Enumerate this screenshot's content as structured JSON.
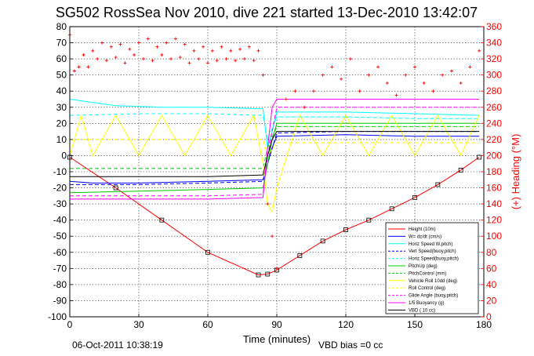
{
  "chart_data": {
    "type": "line",
    "title": "SG502 RossSea Nov 2010, dive 221 started 13-Dec-2010 13:42:07",
    "xlabel": "Time (minutes)",
    "ylabel_right": "(+) Heading (°M)",
    "xlim": [
      0,
      180
    ],
    "ylim": [
      -100,
      80
    ],
    "ylim_right": [
      0,
      360
    ],
    "x_ticks": [
      0,
      30,
      60,
      90,
      120,
      150,
      180
    ],
    "y_ticks": [
      -100,
      -90,
      -80,
      -70,
      -60,
      -50,
      -40,
      -30,
      -20,
      -10,
      0,
      10,
      20,
      30,
      40,
      50,
      60,
      70,
      80
    ],
    "y_ticks_right": [
      0,
      20,
      40,
      60,
      80,
      100,
      120,
      140,
      160,
      180,
      200,
      220,
      240,
      260,
      280,
      300,
      320,
      340,
      360
    ],
    "grid": true,
    "legend_position": "bottom-right",
    "footer_left": "06-Oct-2011 10:38:19",
    "footer_right": "VBD bias =0 cc",
    "colors": {
      "height": "#ff0000",
      "vert_speed": "#0000ff",
      "horiz_speed": "#00ffff",
      "pitch": "#00cc00",
      "roll": "#ffff00",
      "buoyancy": "#ff00ff",
      "vbd": "#000000",
      "heading": "#ff0000"
    },
    "series": [
      {
        "name": "Height (10m)",
        "color": "#ff0000",
        "style": "solid-marker",
        "x": [
          0,
          20,
          40,
          60,
          82,
          86,
          90,
          100,
          110,
          120,
          130,
          140,
          150,
          160,
          170,
          178
        ],
        "y": [
          -1,
          -20,
          -40,
          -60,
          -74,
          -73.5,
          -71,
          -62,
          -53,
          -46,
          -40,
          -33,
          -26,
          -18,
          -9,
          -1
        ]
      },
      {
        "name": "W= dz/dt (cm/s)",
        "color": "#0000ff",
        "style": "solid",
        "x": [
          0,
          10,
          30,
          60,
          84,
          86,
          88,
          90,
          120,
          150,
          178
        ],
        "y": [
          -16,
          -17,
          -17,
          -16,
          -15,
          -5,
          5,
          12,
          13,
          12,
          12
        ]
      },
      {
        "name": "Horiz Speed W,pitch)",
        "color": "#00ffff",
        "style": "solid",
        "x": [
          0,
          5,
          20,
          40,
          60,
          84,
          86,
          88,
          90,
          120,
          150,
          178
        ],
        "y": [
          35,
          34,
          31,
          30,
          30,
          29,
          5,
          15,
          27,
          27,
          26,
          25
        ]
      },
      {
        "name": "Vert Speed(buoy,pitch)",
        "color": "#0000ff",
        "style": "dash",
        "x": [
          0,
          30,
          60,
          84,
          86,
          90,
          120,
          150,
          178
        ],
        "y": [
          -18,
          -18,
          -17,
          -16,
          -5,
          14,
          15,
          15,
          15
        ]
      },
      {
        "name": "Horiz Speed(buoy,pitch)",
        "color": "#00ffff",
        "style": "dash",
        "x": [
          0,
          30,
          60,
          84,
          86,
          90,
          120,
          150,
          178
        ],
        "y": [
          25,
          26,
          26,
          25,
          10,
          24,
          24,
          23,
          23
        ]
      },
      {
        "name": "PitchUp (deg)",
        "color": "#00cc00",
        "style": "solid",
        "x": [
          0,
          30,
          60,
          84,
          86,
          88,
          90,
          120,
          150,
          178
        ],
        "y": [
          -23,
          -22,
          -21,
          -20,
          -5,
          10,
          20,
          20,
          20,
          20
        ]
      },
      {
        "name": "PitchControl (mm)",
        "color": "#00cc00",
        "style": "dash",
        "x": [
          0,
          30,
          60,
          84,
          86,
          90,
          120,
          150,
          178
        ],
        "y": [
          -8,
          -8,
          -8,
          -8,
          5,
          18,
          18,
          18,
          18
        ]
      },
      {
        "name": "Vehicle Roll 10dd (deg)",
        "color": "#ffff00",
        "style": "solid",
        "x": [
          0,
          5,
          10,
          20,
          30,
          40,
          50,
          60,
          70,
          80,
          84,
          86,
          88,
          90,
          100,
          110,
          120,
          130,
          140,
          150,
          160,
          170,
          178
        ],
        "y": [
          0,
          25,
          0,
          25,
          0,
          25,
          0,
          25,
          0,
          25,
          -5,
          -30,
          -35,
          -20,
          25,
          0,
          25,
          0,
          25,
          0,
          25,
          0,
          25
        ]
      },
      {
        "name": "Roll Control (deg)",
        "color": "#ffff00",
        "style": "dash",
        "x": [
          0,
          30,
          60,
          84,
          86,
          90,
          120,
          150,
          178
        ],
        "y": [
          10,
          10,
          10,
          10,
          0,
          8,
          8,
          8,
          8
        ]
      },
      {
        "name": "Glide Angle (buoy,pitch)",
        "color": "#ff00ff",
        "style": "dash",
        "x": [
          0,
          30,
          60,
          84,
          86,
          90,
          120,
          150,
          178
        ],
        "y": [
          -25,
          -25,
          -25,
          -24,
          0,
          30,
          30,
          30,
          30
        ]
      },
      {
        "name": "1/5 Buoyancy (g)",
        "color": "#ff00ff",
        "style": "solid",
        "x": [
          0,
          30,
          60,
          84,
          86,
          88,
          90,
          120,
          150,
          178
        ],
        "y": [
          -27,
          -27,
          -27,
          -26,
          5,
          30,
          35,
          35,
          35,
          35
        ]
      },
      {
        "name": "VBD ( 10 cc)",
        "color": "#000000",
        "style": "solid",
        "x": [
          0,
          30,
          60,
          84,
          86,
          88,
          90,
          120,
          150,
          178
        ],
        "y": [
          -13,
          -13,
          -13,
          -12,
          0,
          10,
          15,
          15,
          15,
          15
        ]
      }
    ],
    "heading_series": {
      "name": "(+) Heading (°M)",
      "color": "#ff0000",
      "marker": "+",
      "x": [
        0,
        2,
        4,
        6,
        8,
        10,
        12,
        14,
        16,
        18,
        20,
        22,
        24,
        26,
        28,
        30,
        32,
        34,
        36,
        38,
        40,
        42,
        44,
        46,
        48,
        50,
        52,
        54,
        56,
        58,
        60,
        62,
        64,
        66,
        68,
        70,
        72,
        74,
        76,
        78,
        80,
        82,
        84,
        86,
        88,
        90,
        94,
        98,
        102,
        106,
        110,
        114,
        118,
        122,
        126,
        130,
        134,
        138,
        142,
        146,
        150,
        154,
        158,
        162,
        166,
        170,
        174,
        178
      ],
      "y": [
        350,
        305,
        310,
        325,
        310,
        330,
        320,
        340,
        318,
        335,
        322,
        338,
        315,
        332,
        325,
        340,
        320,
        345,
        318,
        335,
        325,
        340,
        320,
        345,
        322,
        338,
        315,
        330,
        320,
        335,
        315,
        330,
        318,
        335,
        320,
        330,
        318,
        332,
        320,
        335,
        318,
        330,
        300,
        140,
        100,
        60,
        270,
        280,
        260,
        280,
        300,
        310,
        295,
        320,
        280,
        300,
        310,
        290,
        275,
        300,
        310,
        290,
        280,
        300,
        305,
        290,
        310,
        330
      ]
    }
  }
}
